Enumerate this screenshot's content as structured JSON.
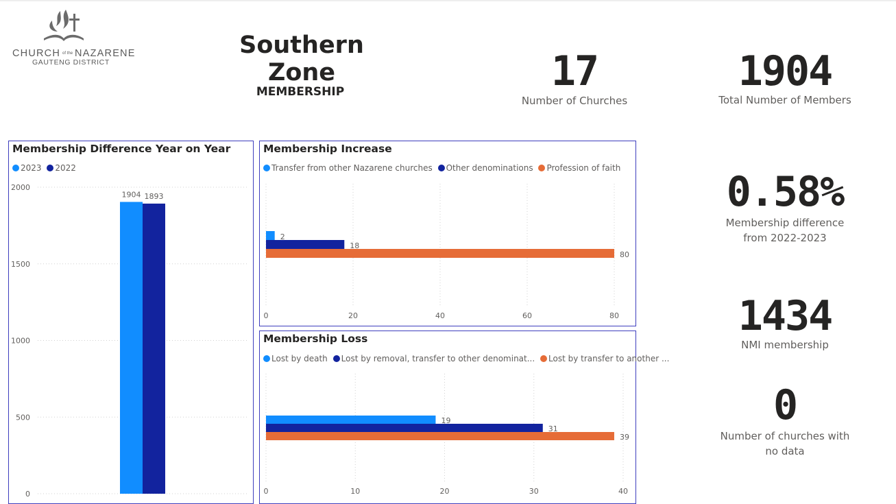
{
  "logo": {
    "name": "CHURCH of the NAZARENE",
    "name_left": "CHURCH",
    "name_small": "of the",
    "name_right": "NAZARENE",
    "district": "GAUTENG DISTRICT"
  },
  "header": {
    "title": "Southern Zone",
    "subtitle": "MEMBERSHIP"
  },
  "kpis": {
    "churches": {
      "value": "17",
      "label": "Number of Churches"
    },
    "members": {
      "value": "1904",
      "label": "Total Number of Members"
    },
    "difference": {
      "value": "0.58%",
      "label": "Membership difference from 2022-2023"
    },
    "nmi": {
      "value": "1434",
      "label": "NMI membership"
    },
    "no_data": {
      "value": "0",
      "label": "Number of churches with no data"
    }
  },
  "chart_data": [
    {
      "id": "year_on_year",
      "type": "bar",
      "title": "Membership Difference Year on Year",
      "categories": [
        ""
      ],
      "series": [
        {
          "name": "2023",
          "values": [
            1904
          ],
          "color": "#118dff"
        },
        {
          "name": "2022",
          "values": [
            1893
          ],
          "color": "#12239e"
        }
      ],
      "ylim": [
        0,
        2000
      ],
      "yticks": [
        0,
        500,
        1000,
        1500,
        2000
      ],
      "legend": "top-left",
      "grid": true
    },
    {
      "id": "increase",
      "type": "bar",
      "orientation": "horizontal",
      "title": "Membership Increase",
      "series": [
        {
          "name": "Transfer from other Nazarene churches",
          "values": [
            2
          ],
          "color": "#118dff"
        },
        {
          "name": "Other denominations",
          "values": [
            18
          ],
          "color": "#12239e"
        },
        {
          "name": "Profession of faith",
          "values": [
            80
          ],
          "color": "#e66c37"
        }
      ],
      "xlim": [
        0,
        80
      ],
      "xticks": [
        0,
        20,
        40,
        60,
        80
      ],
      "legend": "top-left",
      "grid": true
    },
    {
      "id": "loss",
      "type": "bar",
      "orientation": "horizontal",
      "title": "Membership Loss",
      "series": [
        {
          "name": "Lost by death",
          "values": [
            19
          ],
          "color": "#118dff"
        },
        {
          "name": "Lost by removal, transfer to other denominat...",
          "values": [
            31
          ],
          "color": "#12239e"
        },
        {
          "name": "Lost by transfer to another ...",
          "values": [
            39
          ],
          "color": "#e66c37"
        }
      ],
      "xlim": [
        0,
        40
      ],
      "xticks": [
        0,
        10,
        20,
        30,
        40
      ],
      "legend": "top-left",
      "grid": true
    }
  ]
}
